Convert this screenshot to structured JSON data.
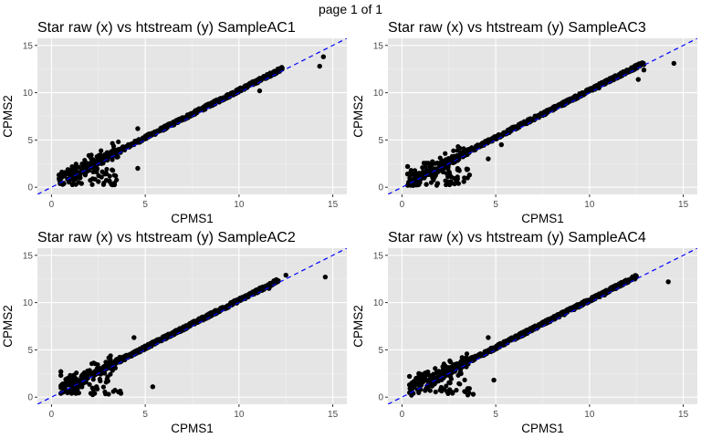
{
  "page_label": "page 1 of 1",
  "colors": {
    "panel_background": "#e5e5e5",
    "grid_major": "#ffffff",
    "point": "#000000",
    "identity_line": "#0000ff",
    "axis_text": "#4d4d4d"
  },
  "chart_data": [
    {
      "type": "scatter",
      "title": "Star raw (x) vs htstream (y) SampleAC1",
      "xlabel": "CPMS1",
      "ylabel": "CPMS2",
      "xlim": [
        -0.75,
        15.75
      ],
      "ylim": [
        -0.75,
        15.75
      ],
      "x_ticks": [
        0,
        5,
        10,
        15
      ],
      "y_ticks": [
        0,
        5,
        10,
        15
      ],
      "grid": true,
      "reference_line": {
        "type": "dashed",
        "slope": 1,
        "intercept": 0
      },
      "points": [
        [
          14.5,
          13.8
        ],
        [
          14.3,
          12.8
        ],
        [
          11.1,
          10.2
        ],
        [
          4.6,
          6.2
        ],
        [
          4.6,
          2.0
        ],
        [
          3.1,
          0.6
        ],
        [
          3.2,
          0.3
        ],
        [
          2.2,
          0.9
        ],
        [
          1.6,
          0.4
        ],
        [
          1.3,
          0.3
        ],
        [
          0.6,
          0.3
        ],
        [
          0.4,
          1.3
        ],
        [
          0.8,
          1.6
        ],
        [
          1.1,
          1.9
        ],
        [
          0.5,
          0.9
        ],
        [
          2.5,
          0.6
        ],
        [
          12.3,
          12.6
        ],
        [
          9.8,
          9.9
        ]
      ],
      "dense_band": {
        "x_start": 0.4,
        "x_end": 12.3
      }
    },
    {
      "type": "scatter",
      "title": "Star raw (x) vs htstream (y) SampleAC3",
      "xlabel": "CPMS1",
      "ylabel": "CPMS2",
      "xlim": [
        -0.75,
        15.75
      ],
      "ylim": [
        -0.75,
        15.75
      ],
      "x_ticks": [
        0,
        5,
        10,
        15
      ],
      "y_ticks": [
        0,
        5,
        10,
        15
      ],
      "grid": true,
      "reference_line": {
        "type": "dashed",
        "slope": 1,
        "intercept": 0
      },
      "points": [
        [
          14.5,
          13.1
        ],
        [
          12.6,
          11.4
        ],
        [
          12.9,
          12.4
        ],
        [
          2.9,
          0.6
        ],
        [
          2.6,
          0.6
        ],
        [
          3.3,
          0.6
        ],
        [
          3.5,
          1.9
        ],
        [
          3.6,
          1.3
        ],
        [
          0.3,
          2.2
        ],
        [
          0.3,
          1.4
        ],
        [
          0.5,
          0.4
        ],
        [
          0.6,
          0.2
        ],
        [
          1.3,
          0.3
        ],
        [
          1.9,
          0.4
        ],
        [
          0.7,
          1.0
        ],
        [
          4.6,
          3.0
        ],
        [
          5.3,
          4.5
        ],
        [
          10.5,
          10.5
        ]
      ],
      "dense_band": {
        "x_start": 0.3,
        "x_end": 12.9
      }
    },
    {
      "type": "scatter",
      "title": "Star raw (x) vs htstream (y) SampleAC2",
      "xlabel": "CPMS1",
      "ylabel": "CPMS2",
      "xlim": [
        -0.75,
        15.75
      ],
      "ylim": [
        -0.75,
        15.75
      ],
      "x_ticks": [
        0,
        5,
        10,
        15
      ],
      "y_ticks": [
        0,
        5,
        10,
        15
      ],
      "grid": true,
      "reference_line": {
        "type": "dashed",
        "slope": 1,
        "intercept": 0
      },
      "points": [
        [
          14.6,
          12.7
        ],
        [
          12.5,
          12.9
        ],
        [
          5.4,
          1.1
        ],
        [
          3.7,
          0.4
        ],
        [
          2.3,
          0.4
        ],
        [
          2.1,
          0.4
        ],
        [
          4.4,
          6.3
        ],
        [
          0.5,
          2.7
        ],
        [
          0.5,
          2.3
        ],
        [
          0.6,
          1.3
        ],
        [
          1.0,
          2.3
        ],
        [
          0.9,
          1.3
        ],
        [
          0.5,
          0.4
        ],
        [
          1.3,
          0.4
        ],
        [
          2.4,
          1.1
        ],
        [
          11.6,
          11.5
        ]
      ],
      "dense_band": {
        "x_start": 0.5,
        "x_end": 12.1
      }
    },
    {
      "type": "scatter",
      "title": "Star raw (x) vs htstream (y) SampleAC4",
      "xlabel": "CPMS1",
      "ylabel": "CPMS2",
      "xlim": [
        -0.75,
        15.75
      ],
      "ylim": [
        -0.75,
        15.75
      ],
      "x_ticks": [
        0,
        5,
        10,
        15
      ],
      "y_ticks": [
        0,
        5,
        10,
        15
      ],
      "grid": true,
      "reference_line": {
        "type": "dashed",
        "slope": 1,
        "intercept": 0
      },
      "points": [
        [
          14.2,
          12.2
        ],
        [
          12.5,
          12.7
        ],
        [
          4.6,
          6.3
        ],
        [
          4.9,
          1.8
        ],
        [
          3.8,
          0.3
        ],
        [
          2.7,
          0.5
        ],
        [
          2.4,
          0.6
        ],
        [
          0.4,
          2.2
        ],
        [
          0.4,
          1.3
        ],
        [
          0.6,
          0.4
        ],
        [
          0.9,
          2.5
        ],
        [
          1.3,
          2.5
        ],
        [
          1.5,
          0.7
        ],
        [
          3.1,
          2.6
        ],
        [
          1.9,
          1.9
        ],
        [
          10.8,
          10.8
        ]
      ],
      "dense_band": {
        "x_start": 0.4,
        "x_end": 12.5
      }
    }
  ]
}
